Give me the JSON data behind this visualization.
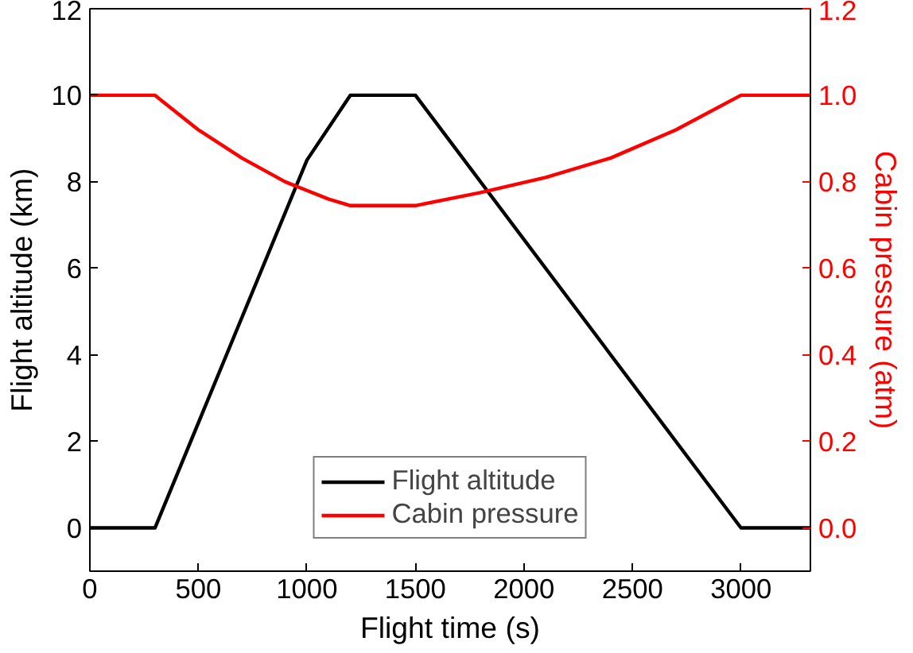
{
  "chart_data": {
    "type": "line",
    "xlabel": "Flight time (s)",
    "ylabel": "Flight altitude (km)",
    "y2label": "Cabin pressure (atm)",
    "xlim": [
      0,
      3320
    ],
    "xticks": [
      0,
      500,
      1000,
      1500,
      2000,
      2500,
      3000
    ],
    "ylim": [
      -1,
      12
    ],
    "yticks": [
      0,
      2,
      4,
      6,
      8,
      10,
      12
    ],
    "y2lim": [
      -0.1,
      1.2
    ],
    "y2ticks": [
      {
        "value": 0,
        "label": "0.0"
      },
      {
        "value": 0.2,
        "label": "0.2"
      },
      {
        "value": 0.4,
        "label": "0.4"
      },
      {
        "value": 0.6,
        "label": "0.6"
      },
      {
        "value": 0.8,
        "label": "0.8"
      },
      {
        "value": 1.0,
        "label": "1.0"
      },
      {
        "value": 1.2,
        "label": "1.2"
      }
    ],
    "grid": false,
    "legend": "bottom",
    "line_style": "solid",
    "marker": "none",
    "series": [
      {
        "name": "Flight altitude",
        "color": "#000000",
        "x": [
          0,
          300,
          1000,
          1200,
          1500,
          3000,
          3320
        ],
        "values": [
          0,
          0,
          8.5,
          10,
          10,
          0,
          0
        ]
      },
      {
        "name": "Cabin pressure",
        "color": "#ff0000",
        "axis": "y2",
        "x": [
          0,
          300,
          500,
          700,
          900,
          1000,
          1100,
          1200,
          1500,
          1800,
          2100,
          2400,
          2700,
          3000,
          3320
        ],
        "values": [
          1.0,
          1.0,
          0.92,
          0.855,
          0.8,
          0.78,
          0.76,
          0.745,
          0.745,
          0.775,
          0.81,
          0.855,
          0.92,
          1.0,
          1.0
        ]
      }
    ]
  }
}
